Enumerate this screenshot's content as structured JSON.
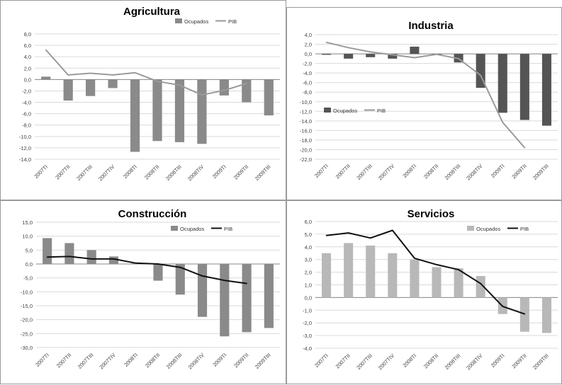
{
  "colors": {
    "bar_dark": "#555555",
    "bar_mid": "#8a8a8a",
    "bar_light": "#b8b8b8",
    "line_gray": "#9a9a9a",
    "line_black": "#111111",
    "grid": "#d9d9d9"
  },
  "chart_data": [
    {
      "type": "bar",
      "title": "Agricultura",
      "categories": [
        "2007TI",
        "2007TII",
        "2007TIII",
        "2007TIV",
        "2008TI",
        "2008TII",
        "2008TIII",
        "2008TIV",
        "2009TI",
        "2009TII",
        "2009TIII"
      ],
      "series": [
        {
          "name": "Ocupados",
          "kind": "bar",
          "values": [
            0.5,
            -3.7,
            -2.9,
            -1.5,
            -12.7,
            -10.8,
            -11.0,
            -11.3,
            -2.8,
            -4.0,
            -6.3
          ]
        },
        {
          "name": "PIB",
          "kind": "line",
          "values": [
            5.2,
            0.8,
            1.1,
            0.8,
            1.2,
            -0.3,
            -1.0,
            -2.7,
            -1.9,
            -0.7,
            null
          ]
        }
      ],
      "yticks": [
        "8,0",
        "6,0",
        "4,0",
        "2,0",
        "0,0",
        "-2,0",
        "-4,0",
        "-6,0",
        "-8,0",
        "-10,0",
        "-12,0",
        "-14,0"
      ],
      "ylim": [
        -14,
        8
      ],
      "legend_position": "top-right",
      "grid": true
    },
    {
      "type": "bar",
      "title": "Industria",
      "categories": [
        "2007TI",
        "2007TII",
        "2007TIII",
        "2007TIV",
        "2008TI",
        "2008TII",
        "2008TIII",
        "2008TIV",
        "2009TI",
        "2009TII",
        "2009TIII"
      ],
      "series": [
        {
          "name": "Ocupados",
          "kind": "bar",
          "values": [
            -0.2,
            -1.0,
            -0.7,
            -1.0,
            1.5,
            -0.1,
            -1.8,
            -7.1,
            -12.3,
            -13.8,
            -15.0
          ]
        },
        {
          "name": "PIB",
          "kind": "line",
          "values": [
            2.4,
            1.3,
            0.4,
            -0.2,
            -0.8,
            -0.1,
            -1.0,
            -4.5,
            -14.3,
            -19.6,
            null
          ]
        }
      ],
      "yticks": [
        "4,0",
        "2,0",
        "0,0",
        "-2,0",
        "-4,0",
        "-6,0",
        "-8,0",
        "-10,0",
        "-12,0",
        "-14,0",
        "-16,0",
        "-18,0",
        "-20,0",
        "-22,0"
      ],
      "ylim": [
        -22,
        4
      ],
      "legend_position": "middle-left",
      "grid": true
    },
    {
      "type": "bar",
      "title": "Construcción",
      "categories": [
        "2007TI",
        "2007TII",
        "2007TIII",
        "2007TIV",
        "2008TI",
        "2008TII",
        "2008TIII",
        "2008TIV",
        "2009TI",
        "2009TII",
        "2009TIII"
      ],
      "series": [
        {
          "name": "Ocupados",
          "kind": "bar",
          "values": [
            9.3,
            7.5,
            5.0,
            2.7,
            0.2,
            -6.0,
            -11.0,
            -19.0,
            -26.0,
            -24.5,
            -23.0
          ]
        },
        {
          "name": "PIB",
          "kind": "line",
          "values": [
            2.5,
            2.7,
            1.8,
            1.8,
            0.3,
            0.0,
            -1.2,
            -4.3,
            -5.9,
            -7.0,
            null
          ]
        }
      ],
      "yticks": [
        "15,0",
        "10,0",
        "5,0",
        "0,0",
        "-5,0",
        "-10,0",
        "-15,0",
        "-20,0",
        "-25,0",
        "-30,0"
      ],
      "ylim": [
        -30,
        15
      ],
      "legend_position": "top-right",
      "grid": true
    },
    {
      "type": "bar",
      "title": "Servicios",
      "categories": [
        "2007TI",
        "2007TII",
        "2007TIII",
        "2007TIV",
        "2008TI",
        "2008TII",
        "2008TIII",
        "2008TIV",
        "2009TI",
        "2009TII",
        "2009TIII"
      ],
      "series": [
        {
          "name": "Ocupados",
          "kind": "bar",
          "values": [
            3.5,
            4.3,
            4.1,
            3.5,
            3.0,
            2.4,
            2.3,
            1.7,
            -1.3,
            -2.7,
            -2.8
          ]
        },
        {
          "name": "PIB",
          "kind": "line",
          "values": [
            4.9,
            5.1,
            4.7,
            5.3,
            3.1,
            2.6,
            2.2,
            1.1,
            -0.7,
            -1.3,
            null
          ]
        }
      ],
      "yticks": [
        "6,0",
        "5,0",
        "4,0",
        "3,0",
        "2,0",
        "1,0",
        "0,0",
        "-1,0",
        "-2,0",
        "-3,0",
        "-4,0"
      ],
      "ylim": [
        -4,
        6
      ],
      "legend_position": "top-right",
      "grid": true
    }
  ]
}
